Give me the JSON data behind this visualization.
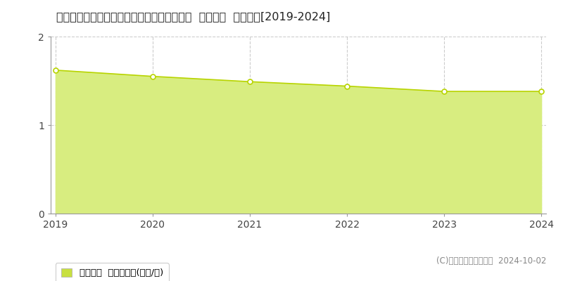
{
  "title": "兵庫県佐用郡佐用町三原字前田１４９番３外  公示地価  地価推移[2019-2024]",
  "years": [
    2019,
    2020,
    2021,
    2022,
    2023,
    2024
  ],
  "values": [
    1.62,
    1.55,
    1.49,
    1.44,
    1.38,
    1.38
  ],
  "ylim": [
    0,
    2
  ],
  "yticks": [
    0,
    1,
    2
  ],
  "line_color": "#b8d400",
  "fill_color": "#d8ed80",
  "marker_facecolor": "#ffffff",
  "marker_edgecolor": "#b8d400",
  "grid_color": "#cccccc",
  "bg_color": "#ffffff",
  "plot_bg_color": "#ffffff",
  "legend_label": "公示地価  平均坪単価(万円/坪)",
  "legend_marker_color": "#c8e040",
  "copyright_text": "(C)土地価格ドットコム  2024-10-02",
  "title_fontsize": 11.5,
  "tick_fontsize": 10,
  "legend_fontsize": 9.5,
  "copyright_fontsize": 8.5,
  "spine_color": "#999999"
}
